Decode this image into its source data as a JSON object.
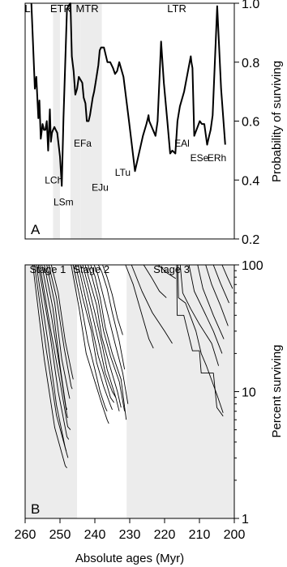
{
  "chart_data": [
    {
      "type": "line",
      "panel_label": "A",
      "ylabel": "Probability of surviving",
      "xlim": [
        260,
        200
      ],
      "ylim": [
        0.2,
        1.0
      ],
      "yticks": [
        "0.2",
        "0.4",
        "0.6",
        "0.8",
        "1.0"
      ],
      "ytick_values": [
        0.2,
        0.4,
        0.6,
        0.8,
        1.0
      ],
      "shaded_intervals": [
        [
          252,
          250
        ],
        [
          247,
          244
        ],
        [
          244,
          241.5
        ],
        [
          241.5,
          238
        ]
      ],
      "period_labels": [
        {
          "text": "L",
          "x": 259.3
        },
        {
          "text": "ETr",
          "x": 249.8
        },
        {
          "text": "MTr",
          "x": 242.2
        },
        {
          "text": "LTr",
          "x": 216.5
        }
      ],
      "event_labels": [
        {
          "text": "LCh",
          "x": 251.8,
          "y": 0.4
        },
        {
          "text": "LSm",
          "x": 249.0,
          "y": 0.325
        },
        {
          "text": "EFa",
          "x": 243.5,
          "y": 0.525
        },
        {
          "text": "EJu",
          "x": 238.5,
          "y": 0.375
        },
        {
          "text": "LTu",
          "x": 232.0,
          "y": 0.425
        },
        {
          "text": "EAl",
          "x": 215.0,
          "y": 0.525
        },
        {
          "text": "ESe",
          "x": 210.0,
          "y": 0.475
        },
        {
          "text": "ERh",
          "x": 205.0,
          "y": 0.475
        }
      ],
      "series": [
        {
          "x": [
            258.2,
            257.2,
            256.8,
            256.2,
            255.9,
            255.5,
            255.0,
            254.6,
            254.2,
            253.8,
            253.4,
            252.9,
            252.6,
            252.3,
            252.0,
            251.6,
            251.2,
            250.8,
            250.4,
            250.0,
            249.5,
            249.0,
            248.0,
            247.6,
            247.0,
            246.6,
            246.1,
            245.6,
            245.1,
            244.6,
            244.1,
            243.6,
            243.2,
            242.7,
            242.3,
            241.8,
            241.4,
            241.0,
            240.6,
            240.2,
            239.8,
            239.4,
            239.0,
            238.6,
            238.2,
            237.4,
            236.4,
            235.6,
            234.8,
            234.2,
            233.6,
            233.0,
            231.8,
            230.2,
            228.5,
            226.2,
            225.2,
            224.8,
            224.6,
            224.4,
            222.6,
            222.0,
            221.0,
            220.2,
            219.2,
            218.4,
            217.8,
            216.9,
            216.3,
            215.6,
            214.4,
            212.5,
            212.3,
            212.0,
            211.5,
            209.9,
            209.3,
            208.6,
            207.8,
            207.2,
            206.8,
            206.2,
            204.9,
            203.8,
            202.6
          ],
          "y": [
            1.0,
            0.71,
            0.75,
            0.61,
            0.67,
            0.54,
            0.59,
            0.57,
            0.57,
            0.6,
            0.5,
            0.64,
            0.53,
            0.56,
            0.57,
            0.58,
            0.57,
            0.56,
            0.52,
            0.48,
            0.38,
            0.61,
            0.98,
            0.99,
            1.0,
            0.82,
            0.77,
            0.69,
            0.71,
            0.75,
            0.74,
            0.73,
            0.68,
            0.66,
            0.6,
            0.6,
            0.62,
            0.65,
            0.68,
            0.7,
            0.73,
            0.76,
            0.79,
            0.84,
            0.85,
            0.85,
            0.8,
            0.8,
            0.78,
            0.76,
            0.77,
            0.8,
            0.75,
            0.6,
            0.43,
            0.55,
            0.59,
            0.61,
            0.62,
            0.6,
            0.55,
            0.6,
            0.87,
            0.73,
            0.6,
            0.49,
            0.5,
            0.49,
            0.6,
            0.65,
            0.7,
            0.82,
            0.8,
            0.78,
            0.55,
            0.6,
            0.59,
            0.59,
            0.52,
            0.55,
            0.57,
            0.62,
            0.99,
            0.71,
            0.52
          ]
        }
      ]
    },
    {
      "type": "line",
      "panel_label": "B",
      "xlabel": "Absolute ages (Myr)",
      "ylabel": "Percent surviving",
      "log_y": true,
      "xlim": [
        260,
        200
      ],
      "ylim": [
        1,
        100
      ],
      "xticks": [
        "260",
        "250",
        "240",
        "230",
        "220",
        "210",
        "200"
      ],
      "xtick_values": [
        260,
        250,
        240,
        230,
        220,
        210,
        200
      ],
      "yticks": [
        "1",
        "10",
        "100"
      ],
      "ytick_values": [
        1,
        10,
        100
      ],
      "shaded_intervals": [
        [
          260,
          245
        ],
        [
          231,
          200
        ]
      ],
      "stage_labels": [
        {
          "text": "Stage 1",
          "x": 253.5
        },
        {
          "text": "Stage 2",
          "x": 241.0
        },
        {
          "text": "Stage 3",
          "x": 218.0
        }
      ],
      "series": [
        {
          "x": [
            257.8,
            254.5,
            251.5,
            248.5,
            248.0
          ],
          "y": [
            100,
            18,
            5.2,
            2.6,
            2.5
          ]
        },
        {
          "x": [
            257.3,
            254.0,
            251.0,
            248.0,
            247.7
          ],
          "y": [
            100,
            22,
            6.5,
            3.2,
            3.0
          ]
        },
        {
          "x": [
            256.8,
            253.5,
            251.0,
            248.5,
            248.2
          ],
          "y": [
            100,
            25,
            7.8,
            3.6,
            3.4
          ]
        },
        {
          "x": [
            256.2,
            253.0,
            250.5,
            248.0,
            247.5
          ],
          "y": [
            100,
            30,
            10,
            4.4,
            4.2
          ]
        },
        {
          "x": [
            255.8,
            252.8,
            250.0,
            247.8,
            247.0
          ],
          "y": [
            100,
            32,
            12,
            5.3,
            5.0
          ]
        },
        {
          "x": [
            255.2,
            252.5,
            249.8,
            248.0,
            247.8
          ],
          "y": [
            100,
            40,
            14,
            6.5,
            6.2
          ]
        },
        {
          "x": [
            254.5,
            252.0,
            250.0,
            248.3,
            248.0
          ],
          "y": [
            100,
            45,
            16,
            7.6,
            7.2
          ]
        },
        {
          "x": [
            253.8,
            251.5,
            249.5,
            247.5,
            247.2
          ],
          "y": [
            100,
            50,
            18,
            9.5,
            8.8
          ]
        },
        {
          "x": [
            253.2,
            251.0,
            248.8,
            246.8,
            246.5
          ],
          "y": [
            100,
            55,
            22,
            11,
            10.5
          ]
        },
        {
          "x": [
            252.5,
            250.5,
            248.5,
            246.5,
            246.2
          ],
          "y": [
            100,
            60,
            25,
            13.5,
            12.5
          ]
        },
        {
          "x": [
            246.8,
            244.5,
            242.5,
            240.0,
            238.0,
            236.5,
            236.0
          ],
          "y": [
            100,
            45,
            20,
            12,
            8,
            6,
            5.6
          ]
        },
        {
          "x": [
            246.2,
            244.0,
            242.0,
            240.0,
            238.5,
            237.0,
            236.5
          ],
          "y": [
            100,
            50,
            25,
            15,
            10,
            7.5,
            7.0
          ]
        },
        {
          "x": [
            245.5,
            243.5,
            241.0,
            239.5,
            237.5,
            235.5,
            235.0
          ],
          "y": [
            100,
            55,
            30,
            17,
            11,
            7.8,
            7.2
          ]
        },
        {
          "x": [
            244.8,
            243.0,
            241.0,
            239.0,
            237.0,
            235.5,
            234.5
          ],
          "y": [
            100,
            60,
            34,
            19,
            12.5,
            9,
            8.2
          ]
        },
        {
          "x": [
            244.2,
            242.5,
            240.5,
            238.5,
            237.0,
            235.0,
            234.0
          ],
          "y": [
            100,
            65,
            38,
            22,
            14,
            10,
            9.0
          ]
        },
        {
          "x": [
            243.5,
            242.0,
            240.0,
            238.0,
            236.5,
            234.0,
            233.0
          ],
          "y": [
            100,
            70,
            42,
            24,
            15,
            9,
            7.0
          ]
        },
        {
          "x": [
            242.8,
            241.5,
            239.5,
            238.0,
            236.0,
            233.5,
            232.5
          ],
          "y": [
            100,
            75,
            48,
            27,
            17,
            10,
            7.5
          ]
        },
        {
          "x": [
            242.0,
            240.8,
            239.0,
            237.5,
            235.5,
            233.0,
            231.5
          ],
          "y": [
            100,
            80,
            52,
            30,
            19,
            12,
            7.0
          ]
        },
        {
          "x": [
            241.2,
            240.0,
            238.5,
            237.0,
            235.0,
            232.5,
            231.0
          ],
          "y": [
            100,
            82,
            55,
            32,
            20,
            12.5,
            6.0
          ]
        },
        {
          "x": [
            240.2,
            239.2,
            237.8,
            236.0,
            234.2,
            232.0,
            230.5
          ],
          "y": [
            100,
            85,
            60,
            38,
            24,
            14,
            8.0
          ]
        },
        {
          "x": [
            239.0,
            238.0,
            236.5,
            235.0,
            233.0,
            231.5
          ],
          "y": [
            100,
            88,
            65,
            42,
            25,
            15
          ]
        },
        {
          "x": [
            237.8,
            236.5,
            235.0,
            233.5,
            232.0
          ],
          "y": [
            100,
            80,
            58,
            38,
            28
          ]
        },
        {
          "x": [
            231.2,
            229.0,
            227.0,
            224.5,
            223.2
          ],
          "y": [
            100,
            70,
            45,
            26,
            22
          ]
        },
        {
          "x": [
            229.5,
            226.5,
            223.5,
            220.0,
            217.8
          ],
          "y": [
            100,
            62,
            42,
            30,
            24
          ]
        },
        {
          "x": [
            226.0,
            223.8,
            221.5,
            219.5
          ],
          "y": [
            100,
            80,
            62,
            55
          ]
        },
        {
          "x": [
            221.8,
            219.2,
            216.8
          ],
          "y": [
            100,
            86,
            78
          ]
        },
        {
          "x": [
            216.5,
            216.4,
            214.5,
            212.0,
            210.0,
            209.5,
            206.0,
            205.0,
            203.2
          ],
          "y": [
            100,
            40,
            40,
            21,
            21,
            14,
            14,
            7.5,
            6.4
          ]
        },
        {
          "x": [
            216.2,
            216.0,
            214.0,
            211.0,
            209.5,
            208.0,
            205.0,
            203.2
          ],
          "y": [
            100,
            55,
            50,
            30,
            20,
            16,
            9.5,
            6.8
          ]
        },
        {
          "x": [
            215.5,
            214.8,
            212.5,
            210.0,
            206.5,
            204.5
          ],
          "y": [
            100,
            60,
            45,
            34,
            24,
            16
          ]
        },
        {
          "x": [
            213.0,
            211.5,
            208.5,
            206.0,
            203.5
          ],
          "y": [
            100,
            62,
            42,
            30,
            20
          ]
        },
        {
          "x": [
            210.5,
            209.0,
            206.0,
            203.0
          ],
          "y": [
            100,
            65,
            40,
            26
          ]
        },
        {
          "x": [
            208.2,
            206.5,
            204.0,
            201.8
          ],
          "y": [
            100,
            70,
            48,
            33
          ]
        },
        {
          "x": [
            206.0,
            204.0,
            201.5
          ],
          "y": [
            100,
            72,
            50
          ]
        },
        {
          "x": [
            203.5,
            202.0,
            200.5
          ],
          "y": [
            100,
            80,
            65
          ]
        }
      ]
    }
  ]
}
